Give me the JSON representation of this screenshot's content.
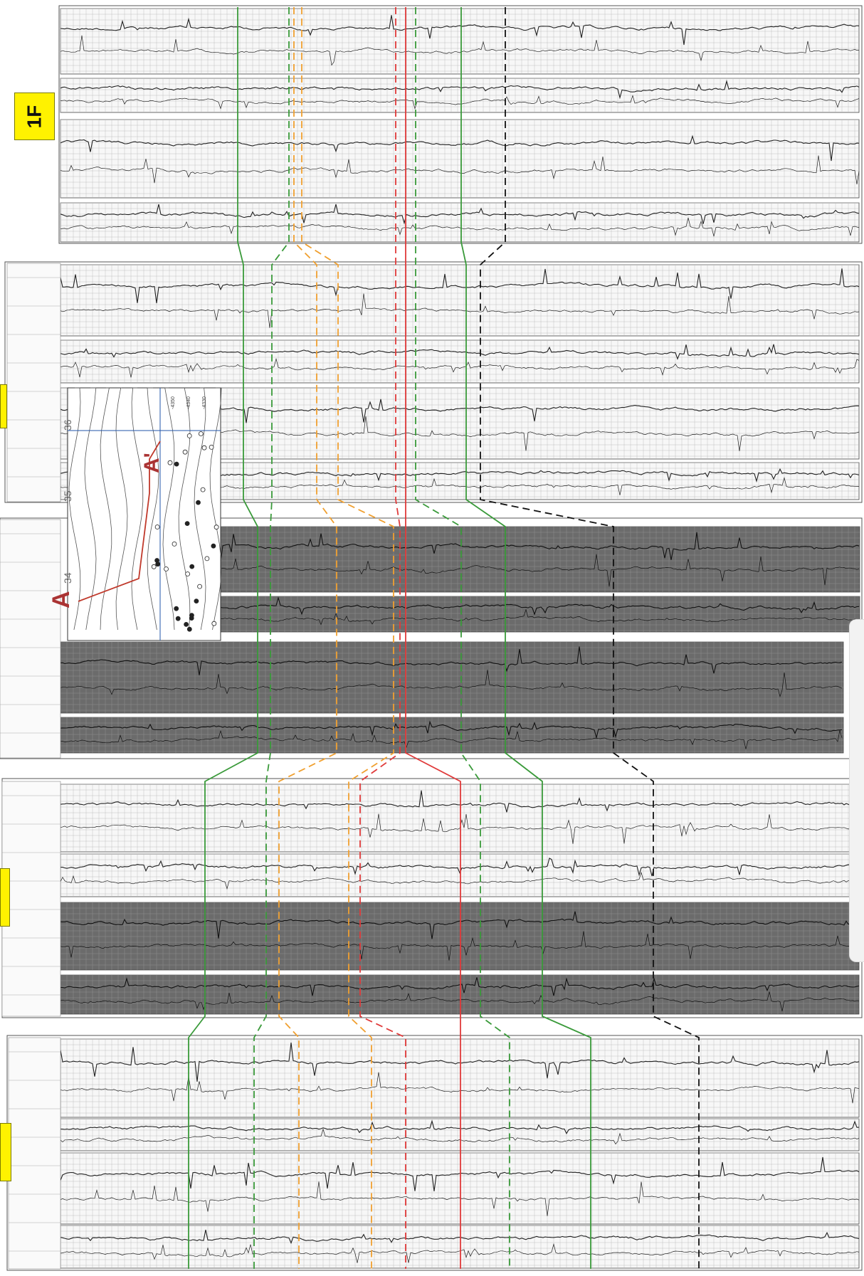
{
  "wells": [
    {
      "id": "well-1",
      "label": "1F",
      "style": "logs",
      "correlation_x": [
        334,
        406,
        413,
        424,
        556,
        570,
        584,
        648,
        710,
        861,
        980
      ]
    },
    {
      "id": "well-2",
      "label": "",
      "style": "logs",
      "correlation_x": [
        342,
        382,
        445,
        475,
        556,
        570,
        584,
        655,
        675,
        858,
        1045
      ]
    },
    {
      "id": "well-3",
      "label": "",
      "style": "dark",
      "correlation_x": [
        362,
        380,
        473,
        553,
        562,
        570,
        648,
        710,
        862,
        1050
      ]
    },
    {
      "id": "well-4",
      "label": "",
      "style": "dark",
      "correlation_x": [
        288,
        374,
        392,
        490,
        506,
        647,
        675,
        762,
        918
      ]
    },
    {
      "id": "well-5",
      "label": "",
      "style": "logs",
      "correlation_x": [
        265,
        357,
        420,
        522,
        570,
        647,
        716,
        830,
        982
      ]
    }
  ],
  "correlation_lines": [
    {
      "color": "#3a9a3a",
      "style": "solid"
    },
    {
      "color": "#3a9a3a",
      "style": "dashed"
    },
    {
      "color": "#f0a030",
      "style": "dashed"
    },
    {
      "color": "#f0a030",
      "style": "dashed"
    },
    {
      "color": "#e03a3a",
      "style": "dashed"
    },
    {
      "color": "#e03a3a",
      "style": "solid"
    },
    {
      "color": "#3a9a3a",
      "style": "dashed"
    },
    {
      "color": "#3a9a3a",
      "style": "solid"
    },
    {
      "color": "#111111",
      "style": "dashed"
    }
  ],
  "map_inset": {
    "labels": [
      "A",
      "A'",
      "36",
      "35",
      "34"
    ],
    "contour_labels": [
      "-4350",
      "-4340",
      "-4330"
    ]
  },
  "colors": {
    "label_fill": "#fff200",
    "grid": "#b5b5b5",
    "trace": "#222222",
    "dark_panel": "#4a4a4a"
  }
}
